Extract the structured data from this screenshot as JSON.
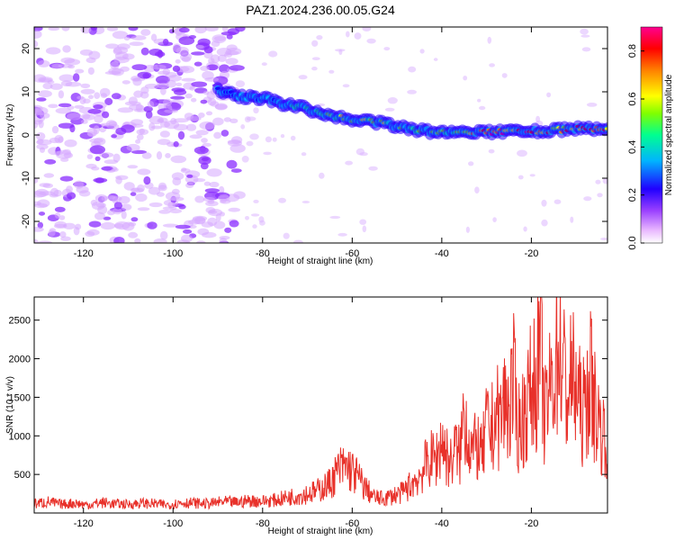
{
  "figure": {
    "title": "PAZ1.2024.236.00.05.G24"
  },
  "chart_data": [
    {
      "type": "heatmap",
      "xlabel": "Height of straight line (km)",
      "ylabel": "Frequency (Hz)",
      "xlim": [
        -131,
        -3
      ],
      "ylim": [
        -25,
        25
      ],
      "xticks": [
        -120,
        -100,
        -80,
        -60,
        -40,
        -20
      ],
      "yticks": [
        -20,
        -10,
        0,
        10,
        20
      ],
      "colorbar": {
        "label": "Normalized spectral amplitude",
        "range": [
          0.0,
          0.9
        ],
        "ticks": [
          0.0,
          0.2,
          0.4,
          0.6,
          0.8
        ],
        "colormap": [
          "#e8b6ff",
          "#7f00ff",
          "#0000ff",
          "#00c8ff",
          "#00ff80",
          "#7fff00",
          "#ffff00",
          "#ff8000",
          "#ff0000",
          "#ff0080"
        ]
      },
      "ridge": {
        "description_free": true,
        "x": [
          -90,
          -85,
          -80,
          -75,
          -70,
          -65,
          -60,
          -55,
          -50,
          -45,
          -40,
          -35,
          -30,
          -25,
          -20,
          -15,
          -10,
          -5,
          -3
        ],
        "y": [
          10.5,
          9,
          8.5,
          7,
          6,
          4.5,
          3.5,
          3,
          2,
          1,
          0.5,
          0.5,
          0.5,
          1,
          1,
          1,
          1.5,
          1.5,
          1.5
        ],
        "amplitude": [
          0.25,
          0.3,
          0.3,
          0.35,
          0.45,
          0.5,
          0.6,
          0.55,
          0.5,
          0.45,
          0.5,
          0.55,
          0.85,
          0.75,
          0.85,
          0.7,
          0.8,
          0.75,
          0.7
        ]
      },
      "noise_region": {
        "x_from": -131,
        "x_to": -85,
        "amplitude": 0.15
      }
    },
    {
      "type": "line",
      "xlabel": "Height of straight line (km)",
      "ylabel": "SNR (10 * v/v)",
      "xlim": [
        -131,
        -3
      ],
      "ylim": [
        0,
        2800
      ],
      "xticks": [
        -120,
        -100,
        -80,
        -60,
        -40,
        -20
      ],
      "yticks": [
        500,
        1000,
        1500,
        2000,
        2500
      ],
      "series": [
        {
          "color": "#e8312a",
          "x": [
            -131,
            -128,
            -125,
            -122,
            -119,
            -116,
            -113,
            -110,
            -107,
            -104,
            -101,
            -98,
            -95,
            -92,
            -89,
            -86,
            -83,
            -80,
            -77,
            -74,
            -71,
            -68,
            -65,
            -63,
            -61,
            -59,
            -57,
            -55,
            -53,
            -51,
            -49,
            -47,
            -45,
            -43,
            -41,
            -40,
            -39,
            -38,
            -37,
            -36,
            -35,
            -34,
            -33,
            -32,
            -31,
            -30,
            -29,
            -28,
            -27,
            -26,
            -25,
            -24,
            -23,
            -22,
            -21,
            -20,
            -19,
            -18,
            -17,
            -16,
            -15,
            -14,
            -13,
            -12,
            -11,
            -10,
            -9,
            -8,
            -7,
            -6,
            -5,
            -4,
            -3
          ],
          "values": [
            150,
            180,
            140,
            160,
            130,
            170,
            150,
            140,
            160,
            150,
            130,
            170,
            160,
            150,
            180,
            170,
            200,
            190,
            210,
            260,
            300,
            350,
            480,
            700,
            750,
            600,
            400,
            250,
            230,
            280,
            320,
            450,
            600,
            850,
            900,
            1200,
            950,
            800,
            1050,
            900,
            1700,
            1200,
            1000,
            1100,
            900,
            1400,
            1300,
            1600,
            1500,
            1800,
            1700,
            2100,
            1400,
            1500,
            1800,
            2000,
            2200,
            2700,
            1500,
            1900,
            2300,
            2800,
            2400,
            1900,
            2200,
            2000,
            1700,
            1600,
            2300,
            1800,
            1500,
            1300,
            1200
          ]
        }
      ]
    }
  ]
}
